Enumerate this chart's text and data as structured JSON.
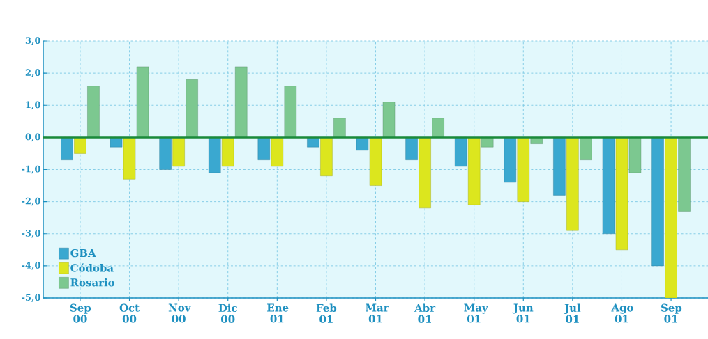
{
  "chart_data": {
    "type": "bar",
    "categories": [
      "Sep 00",
      "Oct 00",
      "Nov 00",
      "Dic 00",
      "Ene 01",
      "Feb 01",
      "Mar 01",
      "Abr 01",
      "May 01",
      "Jun 01",
      "Jul 01",
      "Ago 01",
      "Sep 01"
    ],
    "series": [
      {
        "name": "GBA",
        "color": "#3aa8d0",
        "values": [
          -0.7,
          -0.3,
          -1.0,
          -1.1,
          -0.7,
          -0.3,
          -0.4,
          -0.7,
          -0.9,
          -1.4,
          -1.8,
          -3.0,
          -4.0
        ]
      },
      {
        "name": "Códoba",
        "color": "#dce61e",
        "values": [
          -0.5,
          -1.3,
          -0.9,
          -0.9,
          -0.9,
          -1.2,
          -1.5,
          -2.2,
          -2.1,
          -2.0,
          -2.9,
          -3.5,
          -5.0
        ]
      },
      {
        "name": "Rosario",
        "color": "#7cc890",
        "values": [
          1.6,
          2.2,
          1.8,
          2.2,
          1.6,
          0.6,
          1.1,
          0.6,
          -0.3,
          -0.2,
          -0.7,
          -1.1,
          -2.3
        ]
      }
    ],
    "ylim": [
      -5,
      3
    ],
    "yticks": [
      {
        "value": -5,
        "label": "-5,0"
      },
      {
        "value": -4,
        "label": "-4,0"
      },
      {
        "value": -3,
        "label": "-3,0"
      },
      {
        "value": -2,
        "label": "-2,0"
      },
      {
        "value": -1,
        "label": "-1,0"
      },
      {
        "value": 0,
        "label": "0,0"
      },
      {
        "value": 1,
        "label": "1,0"
      },
      {
        "value": 2,
        "label": "2,0"
      },
      {
        "value": 3,
        "label": "3,0"
      }
    ],
    "ref_lines": [
      {
        "axis": "y",
        "value": 0,
        "color": "#1a8a3a"
      }
    ],
    "grid": true,
    "legend": "bottom left"
  }
}
